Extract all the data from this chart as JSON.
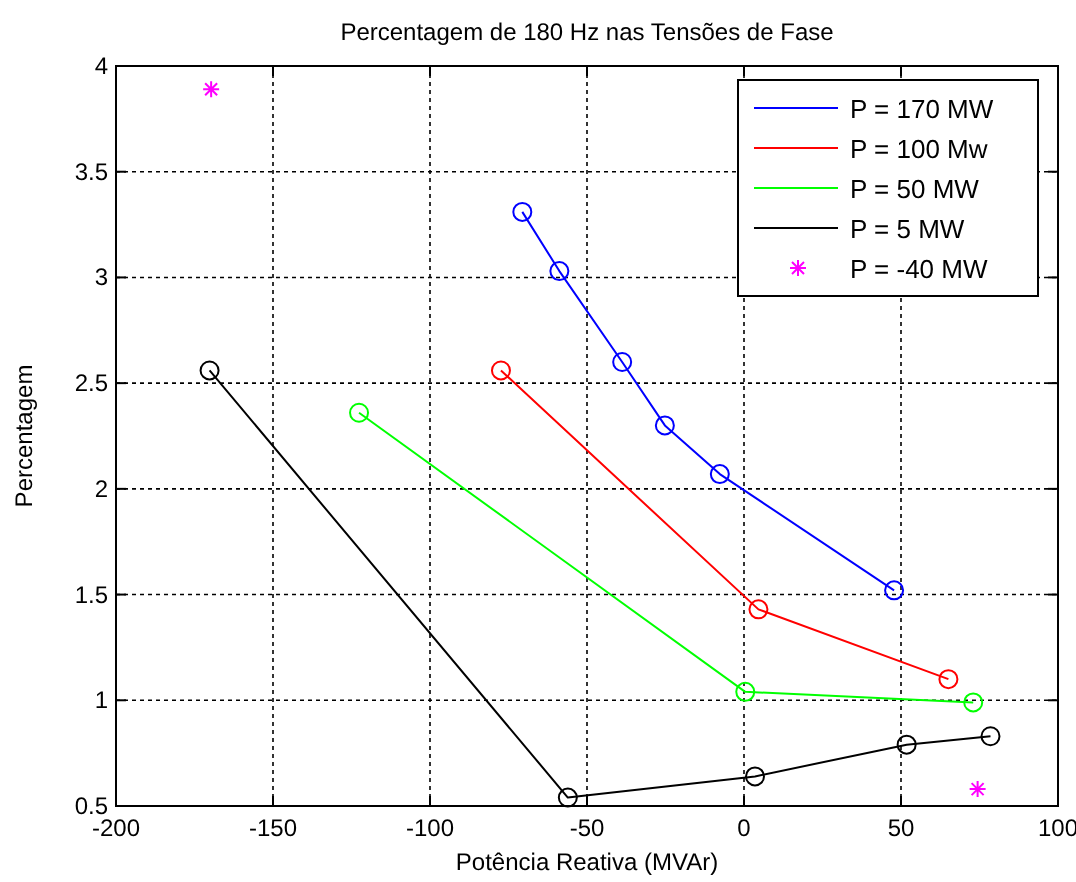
{
  "chart_data": {
    "type": "line",
    "title": "Percentagem de 180 Hz nas Tensões de Fase",
    "xlabel": "Potência Reativa (MVAr)",
    "ylabel": "Percentagem",
    "xlim": [
      -200,
      100
    ],
    "xticks": [
      -200,
      -150,
      -100,
      -50,
      0,
      50,
      100
    ],
    "ylim": [
      0.5,
      4
    ],
    "yticks": [
      0.5,
      1,
      1.5,
      2,
      2.5,
      3,
      3.5,
      4
    ],
    "grid": true,
    "legend": "top right",
    "marker": "circle",
    "line_style": "solid",
    "series": [
      {
        "name": "P  = 170 MW",
        "color": "#0000ff",
        "x": [
          -70.6,
          -58.8,
          -38.8,
          -25.2,
          -7.7,
          47.8
        ],
        "values": [
          3.31,
          3.03,
          2.6,
          2.3,
          2.07,
          1.52
        ]
      },
      {
        "name": "P = 100 Mw",
        "color": "#ff0000",
        "x": [
          -77.4,
          4.6,
          65.1
        ],
        "values": [
          2.56,
          1.43,
          1.1
        ]
      },
      {
        "name": "P = 50 MW",
        "color": "#00ff00",
        "x": [
          -122.6,
          0.4,
          73
        ],
        "values": [
          2.36,
          1.04,
          0.99
        ]
      },
      {
        "name": "P = 5 MW",
        "color": "#000000",
        "x": [
          -170.2,
          -56.1,
          3.5,
          51.8,
          78.5
        ],
        "values": [
          2.56,
          0.54,
          0.64,
          0.79,
          0.83
        ]
      },
      {
        "name": "P = -40 MW",
        "color": "#ff00ff",
        "type": "scatter",
        "marker": "cross",
        "x": [
          -169.7,
          74.4
        ],
        "values": [
          3.89,
          0.58
        ]
      }
    ]
  }
}
